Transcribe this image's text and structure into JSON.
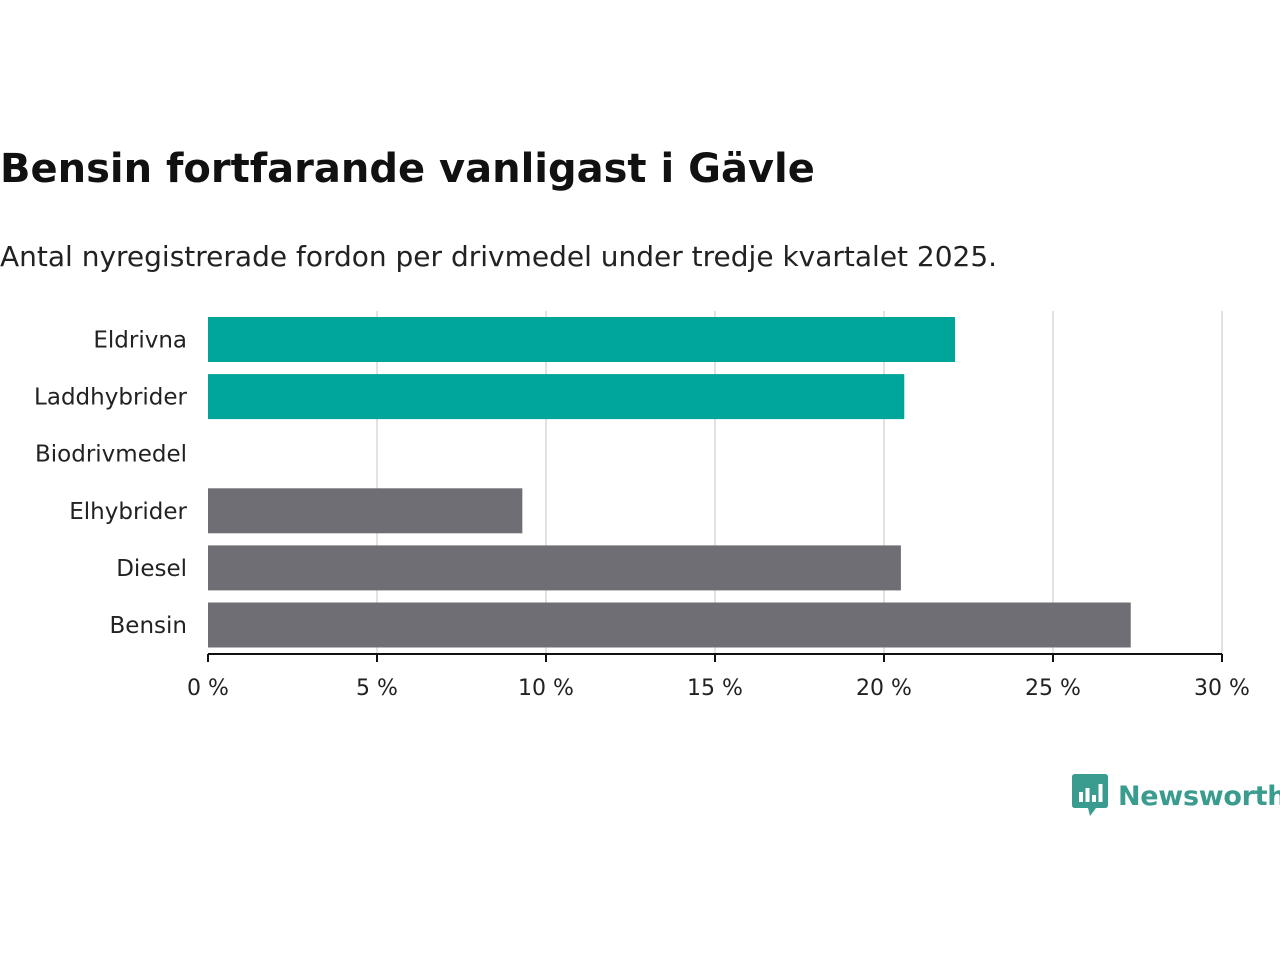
{
  "colors": {
    "highlight": "#00a59a",
    "default": "#6f6e74",
    "grid": "#d9d9d9",
    "axis": "#111111",
    "brand": "#3a9b8f"
  },
  "brand": {
    "name": "Newsworthy",
    "icon": "newsworthy-logo-icon"
  },
  "chart_data": {
    "type": "bar",
    "orientation": "horizontal",
    "title": "Bensin fortfarande vanligast i Gävle",
    "subtitle": "Antal nyregistrerade fordon per drivmedel under tredje kvartalet 2025.",
    "xlabel": "",
    "ylabel": "",
    "xlim": [
      0,
      30
    ],
    "ticks": [
      0,
      5,
      10,
      15,
      20,
      25,
      30
    ],
    "tick_labels": [
      "0 %",
      "5 %",
      "10 %",
      "15 %",
      "20 %",
      "25 %",
      "30 %"
    ],
    "grid": true,
    "categories": [
      "Eldrivna",
      "Laddhybrider",
      "Biodrivmedel",
      "Elhybrider",
      "Diesel",
      "Bensin"
    ],
    "values": [
      22.1,
      20.6,
      0,
      9.3,
      20.5,
      27.3
    ],
    "highlight": [
      true,
      true,
      false,
      false,
      false,
      false
    ]
  }
}
